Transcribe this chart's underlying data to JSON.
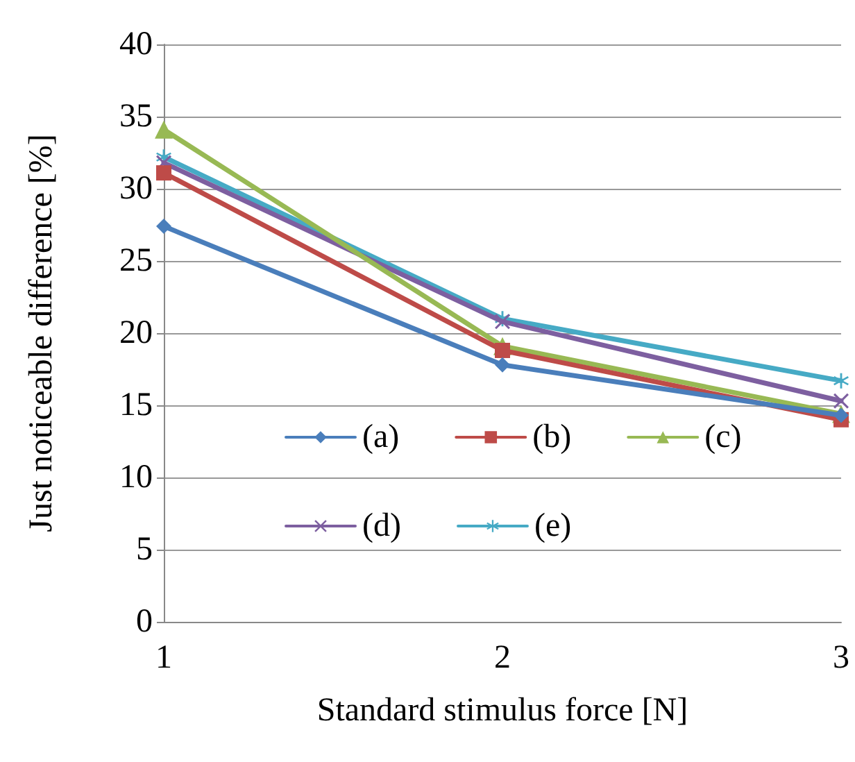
{
  "chart_data": {
    "type": "line",
    "xlabel": "Standard stimulus force [N]",
    "ylabel": "Just noticeable difference [%]",
    "categories": [
      "1",
      "2",
      "3"
    ],
    "ylim": [
      0,
      40
    ],
    "yticks": [
      0,
      5,
      10,
      15,
      20,
      25,
      30,
      35,
      40
    ],
    "grid": "y",
    "legend": "bottom",
    "series": [
      {
        "name": "(a)",
        "color": "#4a7ebb",
        "marker": "diamond",
        "values": [
          27.4,
          17.8,
          14.3
        ]
      },
      {
        "name": "(b)",
        "color": "#be4b48",
        "marker": "square",
        "values": [
          31.1,
          18.8,
          14.0
        ]
      },
      {
        "name": "(c)",
        "color": "#98b954",
        "marker": "triangle",
        "values": [
          34.1,
          19.1,
          14.4
        ]
      },
      {
        "name": "(d)",
        "color": "#7d5fa0",
        "marker": "cross",
        "values": [
          31.8,
          20.8,
          15.3
        ]
      },
      {
        "name": "(e)",
        "color": "#46aac5",
        "marker": "star",
        "values": [
          32.2,
          21.0,
          16.7
        ]
      }
    ]
  }
}
